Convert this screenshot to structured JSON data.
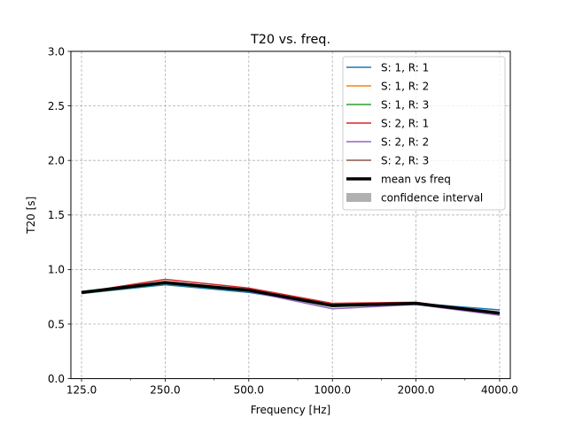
{
  "chart_data": {
    "type": "line",
    "title": "T20 vs. freq.",
    "xlabel": "Frequency [Hz]",
    "ylabel": "T20 [s]",
    "x_scale": "log",
    "x": [
      125,
      250,
      500,
      1000,
      2000,
      4000
    ],
    "x_tick_labels": [
      "125.0",
      "250.0",
      "500.0",
      "1000.0",
      "2000.0",
      "4000.0"
    ],
    "ylim": [
      0,
      3
    ],
    "y_ticks": [
      "0.0",
      "0.5",
      "1.0",
      "1.5",
      "2.0",
      "2.5",
      "3.0"
    ],
    "grid": true,
    "legend_position": "top-right",
    "series": [
      {
        "name": "S: 1, R: 1",
        "color": "#1f77b4",
        "values": [
          0.78,
          0.86,
          0.79,
          0.67,
          0.69,
          0.63
        ]
      },
      {
        "name": "S: 1, R: 2",
        "color": "#ff7f0e",
        "values": [
          0.79,
          0.88,
          0.81,
          0.67,
          0.69,
          0.6
        ]
      },
      {
        "name": "S: 1, R: 3",
        "color": "#2ca02c",
        "values": [
          0.78,
          0.87,
          0.8,
          0.66,
          0.69,
          0.6
        ]
      },
      {
        "name": "S: 2, R: 1",
        "color": "#d62728",
        "values": [
          0.79,
          0.91,
          0.83,
          0.69,
          0.7,
          0.59
        ]
      },
      {
        "name": "S: 2, R: 2",
        "color": "#9467bd",
        "values": [
          0.79,
          0.88,
          0.8,
          0.64,
          0.68,
          0.58
        ]
      },
      {
        "name": "S: 2, R: 3",
        "color": "#8c564b",
        "values": [
          0.79,
          0.89,
          0.81,
          0.67,
          0.69,
          0.6
        ]
      }
    ],
    "mean": {
      "name": "mean vs freq",
      "color": "#000000",
      "values": [
        0.79,
        0.88,
        0.81,
        0.67,
        0.69,
        0.6
      ]
    },
    "confidence_interval": {
      "name": "confidence interval",
      "color": "#b0b0b0",
      "lower": [
        0.78,
        0.86,
        0.79,
        0.65,
        0.68,
        0.58
      ],
      "upper": [
        0.8,
        0.9,
        0.83,
        0.69,
        0.7,
        0.62
      ]
    }
  }
}
